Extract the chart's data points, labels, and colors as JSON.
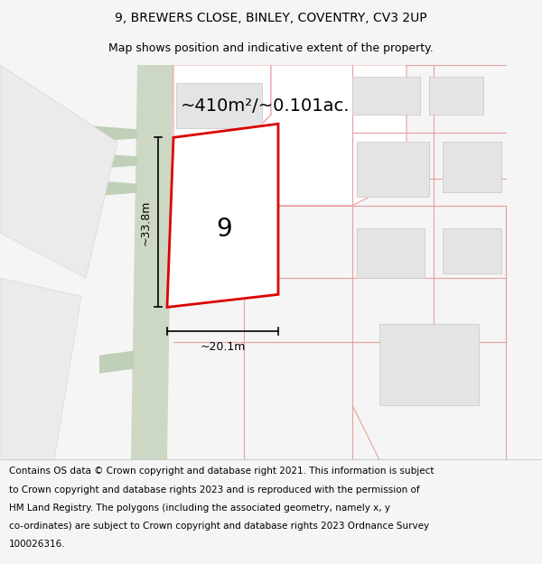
{
  "title": "9, BREWERS CLOSE, BINLEY, COVENTRY, CV3 2UP",
  "subtitle": "Map shows position and indicative extent of the property.",
  "area_label": "~410m²/~0.101ac.",
  "number_label": "9",
  "dim_width": "~20.1m",
  "dim_height": "~33.8m",
  "footer_lines": [
    "Contains OS data © Crown copyright and database right 2021. This information is subject",
    "to Crown copyright and database rights 2023 and is reproduced with the permission of",
    "HM Land Registry. The polygons (including the associated geometry, namely x, y",
    "co-ordinates) are subject to Crown copyright and database rights 2023 Ordnance Survey",
    "100026316."
  ],
  "bg_color": "#f5f5f5",
  "map_bg": "#ffffff",
  "road_strip_color": "#ccd8c4",
  "plot_color": "#dd0000",
  "boundary_color": "#e8a0a0",
  "building_fill": "#e4e4e4",
  "building_edge": "#cccccc",
  "grey_shape_fill": "#e8e8e8",
  "grey_shape_edge": "#d0d0d0",
  "footer_fontsize": 7.5,
  "title_fontsize": 10,
  "subtitle_fontsize": 9,
  "area_fontsize": 14,
  "dim_fontsize": 9,
  "number_fontsize": 20
}
